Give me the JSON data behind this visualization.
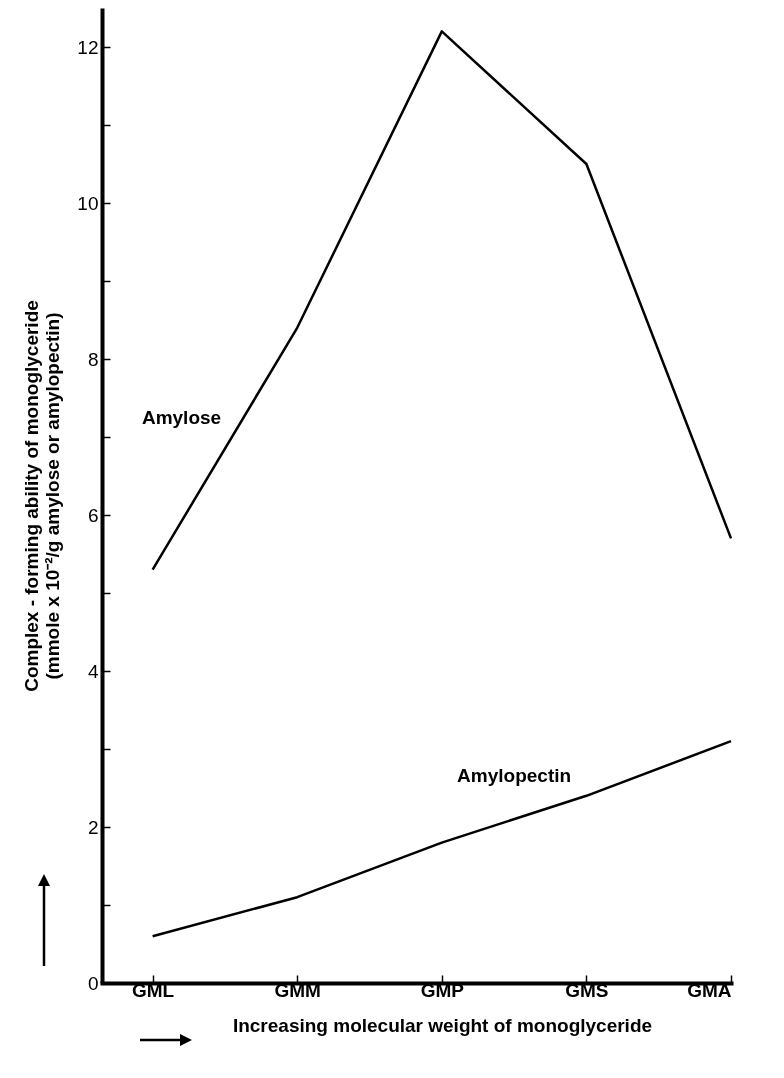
{
  "chart_data": {
    "type": "line",
    "xlabel": "Increasing molecular weight of monoglyceride",
    "ylabel": "Complex - forming ability of monoglyceride\n(mmole x 10⁻²/g amylose or amylopectin)",
    "categories": [
      "GML",
      "GMM",
      "GMP",
      "GMS",
      "GMA"
    ],
    "series": [
      {
        "name": "Amylose",
        "color": "#000000",
        "values": [
          5.3,
          8.4,
          12.2,
          10.5,
          5.7
        ]
      },
      {
        "name": "Amylopectin",
        "color": "#000000",
        "values": [
          0.6,
          1.1,
          1.8,
          2.4,
          3.1
        ]
      }
    ],
    "ylim": [
      0,
      12.5
    ],
    "yticks": [
      0,
      {
        "value": 1,
        "label": null
      },
      2,
      {
        "value": 3,
        "label": null
      },
      4,
      {
        "value": 5,
        "label": null
      },
      6,
      {
        "value": 7,
        "label": null
      },
      8,
      {
        "value": 9,
        "label": null
      },
      10,
      {
        "value": 11,
        "label": null
      },
      12
    ],
    "grid": false,
    "legend": false,
    "marker": "none",
    "line_style": "solid"
  }
}
